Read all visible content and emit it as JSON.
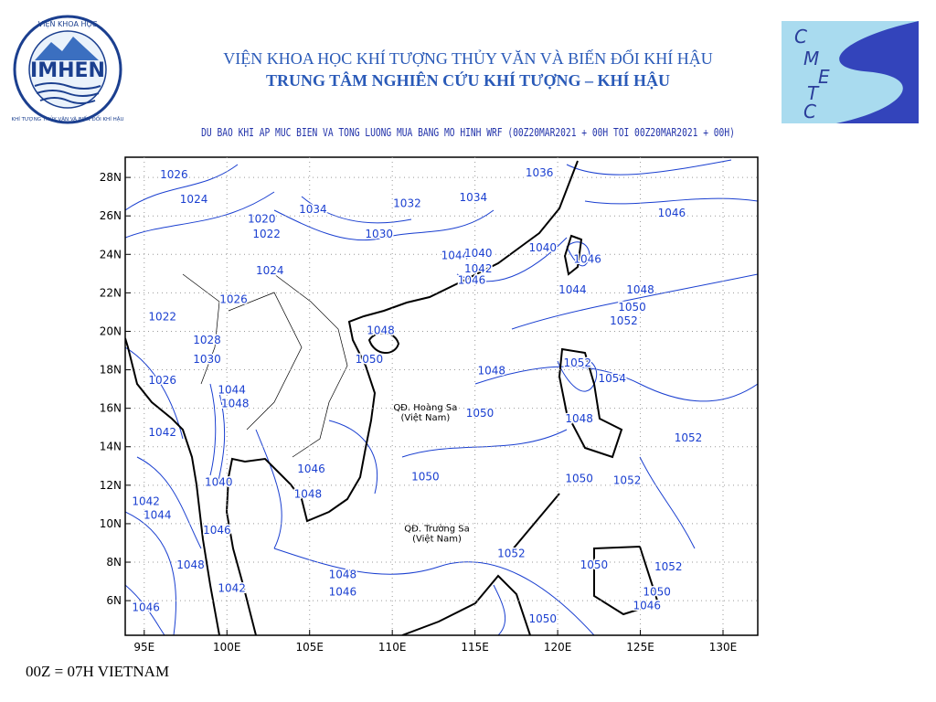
{
  "header": {
    "line1": "VIỆN KHOA HỌC KHÍ TƯỢNG THỦY VĂN VÀ BIẾN ĐỔI KHÍ HẬU",
    "line2": "TRUNG TÂM NGHIÊN CỨU KHÍ TƯỢNG – KHÍ HẬU"
  },
  "logos": {
    "imhen": {
      "name": "IMHEN",
      "top": "VIỆN KHOA HỌC",
      "ring": "KHÍ TƯỢNG THỦY VĂN VÀ BIẾN ĐỔI KHÍ HẬU"
    },
    "cmetc": {
      "letters": [
        "C",
        "M",
        "E",
        "T",
        "C"
      ]
    }
  },
  "map": {
    "title": "DU BAO KHI AP MUC BIEN VA TONG LUONG MUA BANG MO HINH WRF (00Z20MAR2021 + 00H TOI 00Z20MAR2021 + 00H)",
    "xlim": [
      93.85,
      132.1
    ],
    "ylim": [
      4.2,
      29.05
    ],
    "grid": true,
    "contour_color": "#1a3fd0",
    "xticks": [
      {
        "value": 95,
        "label": "95E"
      },
      {
        "value": 100,
        "label": "100E"
      },
      {
        "value": 105,
        "label": "105E"
      },
      {
        "value": 110,
        "label": "110E"
      },
      {
        "value": 115,
        "label": "115E"
      },
      {
        "value": 120,
        "label": "120E"
      },
      {
        "value": 125,
        "label": "125E"
      },
      {
        "value": 130,
        "label": "130E"
      }
    ],
    "yticks": [
      {
        "value": 6,
        "label": "6N"
      },
      {
        "value": 8,
        "label": "8N"
      },
      {
        "value": 10,
        "label": "10N"
      },
      {
        "value": 12,
        "label": "12N"
      },
      {
        "value": 14,
        "label": "14N"
      },
      {
        "value": 16,
        "label": "16N"
      },
      {
        "value": 18,
        "label": "18N"
      },
      {
        "value": 20,
        "label": "20N"
      },
      {
        "value": 22,
        "label": "22N"
      },
      {
        "value": 24,
        "label": "24N"
      },
      {
        "value": 26,
        "label": "26N"
      },
      {
        "value": 28,
        "label": "28N"
      }
    ],
    "contour_labels": [
      {
        "value": 1026,
        "lon": 96.8,
        "lat": 28.2
      },
      {
        "value": 1024,
        "lon": 98.0,
        "lat": 26.9
      },
      {
        "value": 1020,
        "lon": 102.1,
        "lat": 25.9
      },
      {
        "value": 1022,
        "lon": 102.4,
        "lat": 25.1
      },
      {
        "value": 1034,
        "lon": 105.2,
        "lat": 26.4
      },
      {
        "value": 1032,
        "lon": 110.9,
        "lat": 26.7
      },
      {
        "value": 1030,
        "lon": 109.2,
        "lat": 25.1
      },
      {
        "value": 1034,
        "lon": 114.9,
        "lat": 27.0
      },
      {
        "value": 1036,
        "lon": 118.9,
        "lat": 28.3
      },
      {
        "value": 1046,
        "lon": 126.9,
        "lat": 26.2
      },
      {
        "value": 1040,
        "lon": 119.1,
        "lat": 24.4
      },
      {
        "value": 1046,
        "lon": 121.8,
        "lat": 23.8
      },
      {
        "value": 1044,
        "lon": 113.8,
        "lat": 24.0
      },
      {
        "value": 1040,
        "lon": 115.2,
        "lat": 24.1
      },
      {
        "value": 1042,
        "lon": 115.2,
        "lat": 23.3
      },
      {
        "value": 1046,
        "lon": 114.8,
        "lat": 22.7
      },
      {
        "value": 1044,
        "lon": 120.9,
        "lat": 22.2
      },
      {
        "value": 1048,
        "lon": 125.0,
        "lat": 22.2
      },
      {
        "value": 1050,
        "lon": 124.5,
        "lat": 21.3
      },
      {
        "value": 1052,
        "lon": 124.0,
        "lat": 20.6
      },
      {
        "value": 1024,
        "lon": 102.6,
        "lat": 23.2
      },
      {
        "value": 1026,
        "lon": 100.4,
        "lat": 21.7
      },
      {
        "value": 1022,
        "lon": 96.1,
        "lat": 20.8
      },
      {
        "value": 1028,
        "lon": 98.8,
        "lat": 19.6
      },
      {
        "value": 1030,
        "lon": 98.8,
        "lat": 18.6
      },
      {
        "value": 1026,
        "lon": 96.1,
        "lat": 17.5
      },
      {
        "value": 1044,
        "lon": 100.3,
        "lat": 17.0
      },
      {
        "value": 1048,
        "lon": 100.5,
        "lat": 16.3
      },
      {
        "value": 1042,
        "lon": 96.1,
        "lat": 14.8
      },
      {
        "value": 1048,
        "lon": 109.3,
        "lat": 20.1
      },
      {
        "value": 1050,
        "lon": 108.6,
        "lat": 18.6
      },
      {
        "value": 1048,
        "lon": 116.0,
        "lat": 18.0
      },
      {
        "value": 1052,
        "lon": 121.2,
        "lat": 18.4
      },
      {
        "value": 1054,
        "lon": 123.3,
        "lat": 17.6
      },
      {
        "value": 1050,
        "lon": 115.3,
        "lat": 15.8
      },
      {
        "value": 1048,
        "lon": 121.3,
        "lat": 15.5
      },
      {
        "value": 1052,
        "lon": 127.9,
        "lat": 14.5
      },
      {
        "value": 1046,
        "lon": 105.1,
        "lat": 12.9
      },
      {
        "value": 1048,
        "lon": 104.9,
        "lat": 11.6
      },
      {
        "value": 1050,
        "lon": 112.0,
        "lat": 12.5
      },
      {
        "value": 1040,
        "lon": 99.5,
        "lat": 12.2
      },
      {
        "value": 1042,
        "lon": 95.1,
        "lat": 11.2
      },
      {
        "value": 1044,
        "lon": 95.8,
        "lat": 10.5
      },
      {
        "value": 1046,
        "lon": 99.4,
        "lat": 9.7
      },
      {
        "value": 1048,
        "lon": 97.8,
        "lat": 7.9
      },
      {
        "value": 1048,
        "lon": 107.0,
        "lat": 7.4
      },
      {
        "value": 1046,
        "lon": 107.0,
        "lat": 6.5
      },
      {
        "value": 1052,
        "lon": 117.2,
        "lat": 8.5
      },
      {
        "value": 1050,
        "lon": 121.3,
        "lat": 12.4
      },
      {
        "value": 1052,
        "lon": 124.2,
        "lat": 12.3
      },
      {
        "value": 1050,
        "lon": 122.2,
        "lat": 7.9
      },
      {
        "value": 1052,
        "lon": 126.7,
        "lat": 7.8
      },
      {
        "value": 1050,
        "lon": 126.0,
        "lat": 6.5
      },
      {
        "value": 1046,
        "lon": 125.4,
        "lat": 5.8
      },
      {
        "value": 1050,
        "lon": 119.1,
        "lat": 5.1
      },
      {
        "value": 1046,
        "lon": 95.1,
        "lat": 5.7
      },
      {
        "value": 1042,
        "lon": 100.3,
        "lat": 6.7
      }
    ],
    "places": [
      {
        "name": "QĐ. Hoàng Sa",
        "note": "(Việt Nam)",
        "lon": 112.0,
        "lat": 15.9
      },
      {
        "name": "QĐ. Trường Sa",
        "note": "(Việt Nam)",
        "lon": 112.7,
        "lat": 9.6
      }
    ]
  },
  "footer": "00Z = 07H VIETNAM"
}
